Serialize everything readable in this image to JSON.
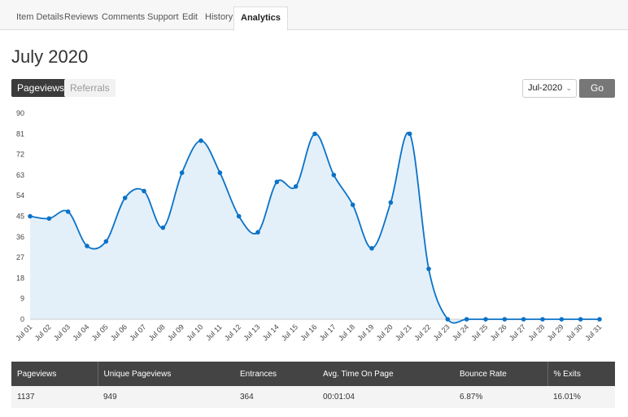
{
  "tabs": [
    {
      "label": "Item Details"
    },
    {
      "label": "Reviews"
    },
    {
      "label": "Comments"
    },
    {
      "label": "Support"
    },
    {
      "label": "Edit"
    },
    {
      "label": "History"
    },
    {
      "label": "Analytics",
      "active": true
    }
  ],
  "page_title": "July 2020",
  "segments": {
    "pageviews": "Pageviews",
    "referrals": "Referrals",
    "active": "Pageviews"
  },
  "month_select": {
    "value": "Jul-2020"
  },
  "go_label": "Go",
  "colors": {
    "line": "#0b72c7",
    "fill": "#e3f0f9",
    "header": "#444444"
  },
  "chart_data": {
    "type": "area",
    "categories": [
      "Jul 01",
      "Jul 02",
      "Jul 03",
      "Jul 04",
      "Jul 05",
      "Jul 06",
      "Jul 07",
      "Jul 08",
      "Jul 09",
      "Jul 10",
      "Jul 11",
      "Jul 12",
      "Jul 13",
      "Jul 14",
      "Jul 15",
      "Jul 16",
      "Jul 17",
      "Jul 18",
      "Jul 19",
      "Jul 20",
      "Jul 21",
      "Jul 22",
      "Jul 23",
      "Jul 24",
      "Jul 25",
      "Jul 26",
      "Jul 27",
      "Jul 28",
      "Jul 29",
      "Jul 30",
      "Jul 31"
    ],
    "values": [
      45,
      44,
      47,
      32,
      34,
      53,
      56,
      40,
      64,
      78,
      64,
      45,
      38,
      60,
      58,
      81,
      63,
      50,
      31,
      51,
      81,
      22,
      0,
      0,
      0,
      0,
      0,
      0,
      0,
      0,
      0
    ],
    "yticks": [
      0,
      9,
      18,
      27,
      36,
      45,
      54,
      63,
      72,
      81,
      90
    ],
    "ylim": [
      0,
      90
    ],
    "grid": false
  },
  "stats": {
    "headers": [
      "Pageviews",
      "Unique Pageviews",
      "Entrances",
      "Avg. Time On Page",
      "Bounce Rate",
      "% Exits"
    ],
    "values": [
      "1137",
      "949",
      "364",
      "00:01:04",
      "6.87%",
      "16.01%"
    ]
  }
}
